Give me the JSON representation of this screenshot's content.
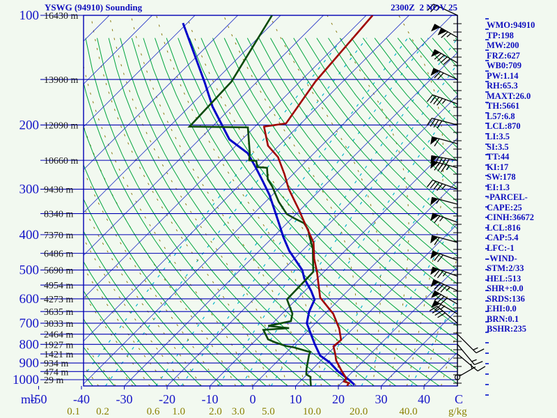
{
  "header": {
    "title": "YSWG (94910) Sounding",
    "datetime": "2300Z  2 NOV 25"
  },
  "indices_panel": [
    "WMO:94910",
    "TP:198",
    "MW:200",
    "FRZ:627",
    "WB0:709",
    "PW:1.14",
    "RH:65.3",
    "MAXT:26.0",
    "TH:5661",
    "L57:6.8",
    "LCL:870",
    "LI:3.5",
    "SI:3.5",
    "TT:44",
    "KI:17",
    "SW:178",
    "EI:1.3",
    "-PARCEL-",
    "CAPE:25",
    "CINH:36672",
    "LCL:816",
    "CAP:5.4",
    "LFC:-1",
    "-WIND-",
    "STM:2/33",
    "HEL:513",
    "SHR+:0.0",
    "SRDS:136",
    "EHI:0.0",
    "BRN:0.1",
    "BSHR:235"
  ],
  "chart_data": {
    "type": "skewt-log-p-sounding",
    "station": "YSWG (94910)",
    "valid_time": "2300Z 2 NOV 25",
    "pressure_axis": {
      "unit_label": "mb",
      "labeled_ticks": [
        100,
        200,
        300,
        400,
        500,
        600,
        700,
        800,
        900,
        1000
      ],
      "line_levels_step_mb": 50,
      "top_mb": 100,
      "bottom_mb": 1041
    },
    "temperature_axis": {
      "unit_label": "C",
      "ticks": [
        -50,
        -40,
        -30,
        -20,
        -10,
        0,
        10,
        20,
        30,
        40
      ],
      "isotherm_step_c": 10,
      "isotherm_range_c": [
        -130,
        40
      ]
    },
    "mixing_ratio_lines": {
      "unit_label": "g/kg",
      "values": [
        0.1,
        0.2,
        0.6,
        1.0,
        2.0,
        3.0,
        5.0,
        10.0,
        20.0,
        40.0
      ]
    },
    "dry_adiabats": {
      "theta_min_c": -45,
      "theta_max_c": 180,
      "step_c": 5
    },
    "moist_adiabats": {
      "thetaw_min_c": -40,
      "thetaw_max_c": 48,
      "step_c": 4
    },
    "height_labels": [
      {
        "p": 100,
        "label": "16430 m"
      },
      {
        "p": 150,
        "label": "13900 m"
      },
      {
        "p": 200,
        "label": "12090 m"
      },
      {
        "p": 250,
        "label": "10660 m"
      },
      {
        "p": 300,
        "label": "9430 m"
      },
      {
        "p": 350,
        "label": "8340 m"
      },
      {
        "p": 400,
        "label": "7370 m"
      },
      {
        "p": 450,
        "label": "6486 m"
      },
      {
        "p": 500,
        "label": "5690 m"
      },
      {
        "p": 550,
        "label": "4954 m"
      },
      {
        "p": 600,
        "label": "4273 m"
      },
      {
        "p": 650,
        "label": "3635 m"
      },
      {
        "p": 700,
        "label": "3033 m"
      },
      {
        "p": 750,
        "label": "2464 m"
      },
      {
        "p": 800,
        "label": "1927 m"
      },
      {
        "p": 850,
        "label": "1421 m"
      },
      {
        "p": 900,
        "label": "934 m"
      },
      {
        "p": 950,
        "label": "474 m"
      },
      {
        "p": 1000,
        "label": "29 m"
      }
    ],
    "series": {
      "temperature_p_c": [
        [
          1040,
          22.0
        ],
        [
          1022,
          21.8
        ],
        [
          1012,
          20.3
        ],
        [
          990,
          20.0
        ],
        [
          945,
          17.2
        ],
        [
          885,
          13.5
        ],
        [
          850,
          11.8
        ],
        [
          810,
          9.6
        ],
        [
          778,
          9.9
        ],
        [
          724,
          6.8
        ],
        [
          660,
          2.0
        ],
        [
          595,
          -4.9
        ],
        [
          505,
          -11.7
        ],
        [
          465,
          -15.4
        ],
        [
          420,
          -19.3
        ],
        [
          385,
          -24.0
        ],
        [
          340,
          -30.6
        ],
        [
          300,
          -37.5
        ],
        [
          273,
          -42.0
        ],
        [
          245,
          -47.5
        ],
        [
          228,
          -52.5
        ],
        [
          202,
          -57.9
        ],
        [
          198,
          -53.5
        ],
        [
          152,
          -56.4
        ],
        [
          100,
          -58.5
        ]
      ],
      "dewpoint_p_c": [
        [
          1046,
          13.8
        ],
        [
          1005,
          12.2
        ],
        [
          983,
          11.4
        ],
        [
          967,
          9.8
        ],
        [
          935,
          8.6
        ],
        [
          855,
          5.9
        ],
        [
          839,
          5.5
        ],
        [
          836,
          4.7
        ],
        [
          826,
          2.8
        ],
        [
          815,
          0.5
        ],
        [
          808,
          -1.6
        ],
        [
          790,
          -4.9
        ],
        [
          775,
          -7.3
        ],
        [
          730,
          -10.6
        ],
        [
          722,
          -5.0
        ],
        [
          712,
          -10.4
        ],
        [
          691,
          -6.2
        ],
        [
          659,
          -7.6
        ],
        [
          624,
          -10.4
        ],
        [
          602,
          -12.2
        ],
        [
          528,
          -12.4
        ],
        [
          506,
          -12.5
        ],
        [
          437,
          -18.0
        ],
        [
          405,
          -21.6
        ],
        [
          387,
          -23.6
        ],
        [
          372,
          -26.0
        ],
        [
          361,
          -29.3
        ],
        [
          351,
          -32.2
        ],
        [
          325,
          -36.9
        ],
        [
          295,
          -42.0
        ],
        [
          282,
          -44.7
        ],
        [
          262,
          -47.6
        ],
        [
          261,
          -50.0
        ],
        [
          251,
          -51.7
        ],
        [
          250,
          -53.5
        ],
        [
          239,
          -55.0
        ],
        [
          203,
          -61.5
        ],
        [
          202,
          -75.3
        ],
        [
          152,
          -76.0
        ],
        [
          100,
          -82.0
        ]
      ],
      "parcel_p_c": [
        [
          1033,
          23.5
        ],
        [
          1000,
          21.0
        ],
        [
          950,
          16.6
        ],
        [
          897,
          12.5
        ],
        [
          858,
          8.6
        ],
        [
          800,
          4.8
        ],
        [
          750,
          1.5
        ],
        [
          700,
          -2.0
        ],
        [
          650,
          -4.2
        ],
        [
          603,
          -5.7
        ],
        [
          570,
          -8.6
        ],
        [
          528,
          -13.0
        ],
        [
          500,
          -15.5
        ],
        [
          443,
          -23.0
        ],
        [
          406,
          -27.6
        ],
        [
          371,
          -32.0
        ],
        [
          340,
          -36.3
        ],
        [
          311,
          -40.7
        ],
        [
          285,
          -45.5
        ],
        [
          261,
          -50.4
        ],
        [
          239,
          -55.5
        ],
        [
          219,
          -63.0
        ],
        [
          178,
          -74.6
        ],
        [
          153,
          -82.0
        ],
        [
          105,
          -101.0
        ]
      ]
    },
    "wind_barbs": [
      {
        "p": 100,
        "dir": 295,
        "spd": 25
      },
      {
        "p": 115,
        "dir": 300,
        "spd": 115
      },
      {
        "p": 135,
        "dir": 300,
        "spd": 90
      },
      {
        "p": 150,
        "dir": 295,
        "spd": 70
      },
      {
        "p": 175,
        "dir": 290,
        "spd": 45
      },
      {
        "p": 200,
        "dir": 285,
        "spd": 40
      },
      {
        "p": 225,
        "dir": 285,
        "spd": 60
      },
      {
        "p": 250,
        "dir": 280,
        "spd": 90
      },
      {
        "p": 262,
        "dir": 285,
        "spd": 85
      },
      {
        "p": 300,
        "dir": 290,
        "spd": 45
      },
      {
        "p": 330,
        "dir": 285,
        "spd": 55
      },
      {
        "p": 370,
        "dir": 290,
        "spd": 65
      },
      {
        "p": 420,
        "dir": 285,
        "spd": 60
      },
      {
        "p": 470,
        "dir": 290,
        "spd": 70
      },
      {
        "p": 520,
        "dir": 290,
        "spd": 75
      },
      {
        "p": 570,
        "dir": 295,
        "spd": 85
      },
      {
        "p": 620,
        "dir": 300,
        "spd": 80
      },
      {
        "p": 660,
        "dir": 300,
        "spd": 65
      },
      {
        "p": 700,
        "dir": 310,
        "spd": 40
      },
      {
        "p": 750,
        "dir": 135,
        "spd": 15
      },
      {
        "p": 800,
        "dir": 140,
        "spd": 15
      },
      {
        "p": 850,
        "dir": 130,
        "spd": 10
      },
      {
        "p": 985,
        "dir": 60,
        "spd": 5
      }
    ],
    "colors": {
      "background": "#f2f9f0",
      "frame": "#0000b4",
      "pressure_lines": "#0000b4",
      "isotherms": "#3040c8",
      "dry_adiabats": "#00a43e",
      "moist_adiabats": "#8a7a10",
      "mixing_ratio": "#00b4c8",
      "temperature_trace": "#a00000",
      "dewpoint_trace": "#0a4a0a",
      "parcel_trace": "#0000c8",
      "wind_staff": "#000000",
      "text_blue": "#1515c8",
      "mixing_label": "#8a8000",
      "right_ticks": "#2f3fd0"
    }
  }
}
